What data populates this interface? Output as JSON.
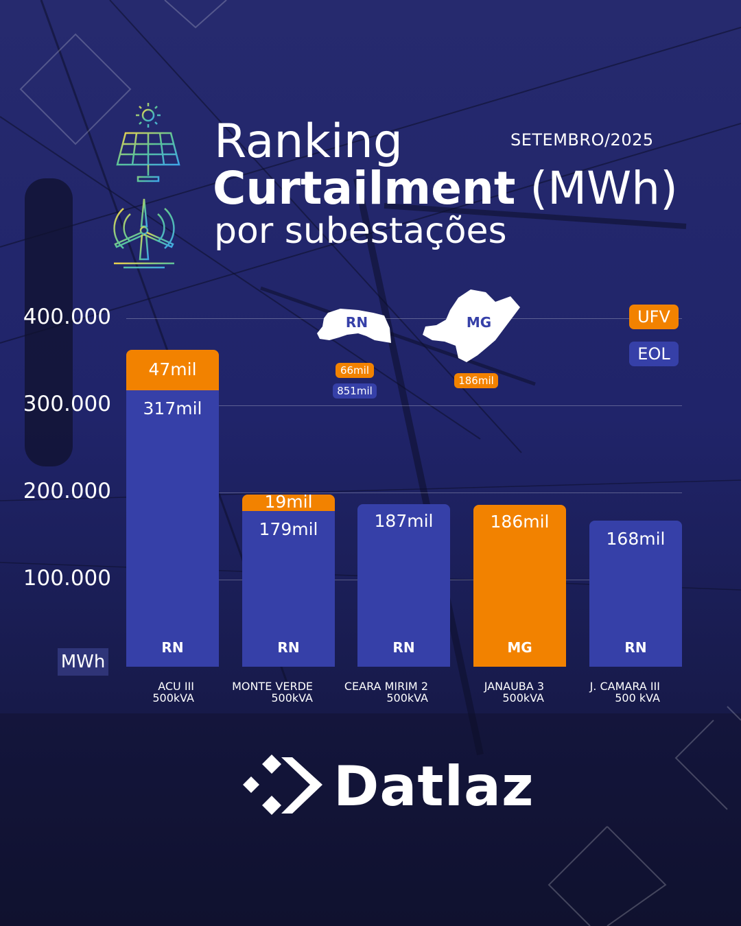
{
  "header": {
    "title_line1": "Ranking",
    "title_bold": "Curtailment",
    "title_unit": "(MWh)",
    "title_line3": "por subestações",
    "period": "SETEMBRO/2025"
  },
  "icons": [
    "solar-panel-icon",
    "wind-turbine-icon"
  ],
  "colors": {
    "background": "#1f2266",
    "ufv": "#f28200",
    "eol": "#3640a8"
  },
  "legend": [
    {
      "label": "UFV",
      "color": "#f28200"
    },
    {
      "label": "EOL",
      "color": "#3640a8"
    }
  ],
  "state_totals": [
    {
      "state": "RN",
      "ufv": "66mil",
      "eol": "851mil"
    },
    {
      "state": "MG",
      "ufv": "186mil"
    }
  ],
  "brand": {
    "name": "Datlaz"
  },
  "chart_data": {
    "type": "bar",
    "stacked": true,
    "categories": [
      {
        "line1": "ACU III",
        "line2": "500kVA"
      },
      {
        "line1": "MONTE VERDE",
        "line2": "500kVA"
      },
      {
        "line1": "CEARA MIRIM 2",
        "line2": "500kVA"
      },
      {
        "line1": "JANAUBA 3",
        "line2": "500kVA"
      },
      {
        "line1": "J. CAMARA III",
        "line2": "500 kVA"
      }
    ],
    "states": [
      "RN",
      "RN",
      "RN",
      "MG",
      "RN"
    ],
    "series": [
      {
        "name": "EOL",
        "values": [
          317000,
          179000,
          187000,
          0,
          168000
        ],
        "labels": [
          "317mil",
          "179mil",
          "187mil",
          "",
          "168mil"
        ]
      },
      {
        "name": "UFV",
        "values": [
          47000,
          19000,
          0,
          186000,
          0
        ],
        "labels": [
          "47mil",
          "19mil",
          "",
          "186mil",
          ""
        ]
      }
    ],
    "ylabel": "MWh",
    "yticks": [
      "400.000",
      "300.000",
      "200.000",
      "100.000"
    ],
    "ytick_values": [
      400000,
      300000,
      200000,
      100000
    ],
    "ylim": [
      0,
      400000
    ],
    "grid": true,
    "legend_position": "top-right"
  }
}
